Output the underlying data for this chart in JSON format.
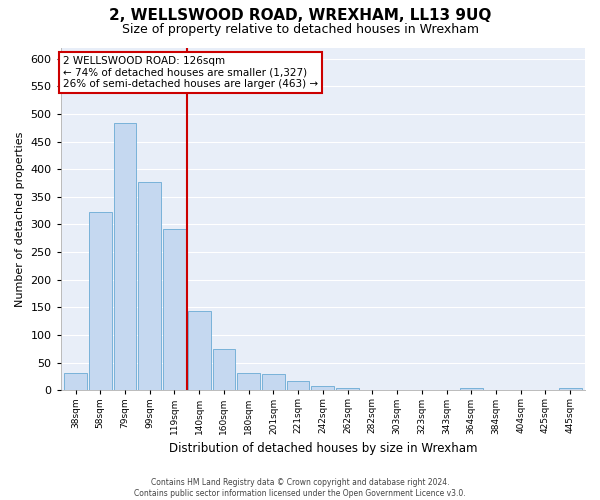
{
  "title": "2, WELLSWOOD ROAD, WREXHAM, LL13 9UQ",
  "subtitle": "Size of property relative to detached houses in Wrexham",
  "xlabel": "Distribution of detached houses by size in Wrexham",
  "ylabel": "Number of detached properties",
  "bar_labels": [
    "38sqm",
    "58sqm",
    "79sqm",
    "99sqm",
    "119sqm",
    "140sqm",
    "160sqm",
    "180sqm",
    "201sqm",
    "221sqm",
    "242sqm",
    "262sqm",
    "282sqm",
    "303sqm",
    "323sqm",
    "343sqm",
    "364sqm",
    "384sqm",
    "404sqm",
    "425sqm",
    "445sqm"
  ],
  "bar_values": [
    32,
    323,
    483,
    376,
    291,
    144,
    75,
    32,
    29,
    16,
    7,
    5,
    1,
    1,
    0,
    0,
    5,
    0,
    0,
    0,
    5
  ],
  "bar_color": "#c5d8f0",
  "bar_edge_color": "#6aaad4",
  "vline_x": 4.5,
  "vline_color": "#cc0000",
  "annotation_title": "2 WELLSWOOD ROAD: 126sqm",
  "annotation_line1": "← 74% of detached houses are smaller (1,327)",
  "annotation_line2": "26% of semi-detached houses are larger (463) →",
  "annotation_box_color": "#cc0000",
  "ylim": [
    0,
    620
  ],
  "yticks": [
    0,
    50,
    100,
    150,
    200,
    250,
    300,
    350,
    400,
    450,
    500,
    550,
    600
  ],
  "footer_line1": "Contains HM Land Registry data © Crown copyright and database right 2024.",
  "footer_line2": "Contains public sector information licensed under the Open Government Licence v3.0.",
  "bg_color": "#ffffff",
  "plot_bg_color": "#e8eef8",
  "grid_color": "#ffffff",
  "title_fontsize": 11,
  "subtitle_fontsize": 9
}
